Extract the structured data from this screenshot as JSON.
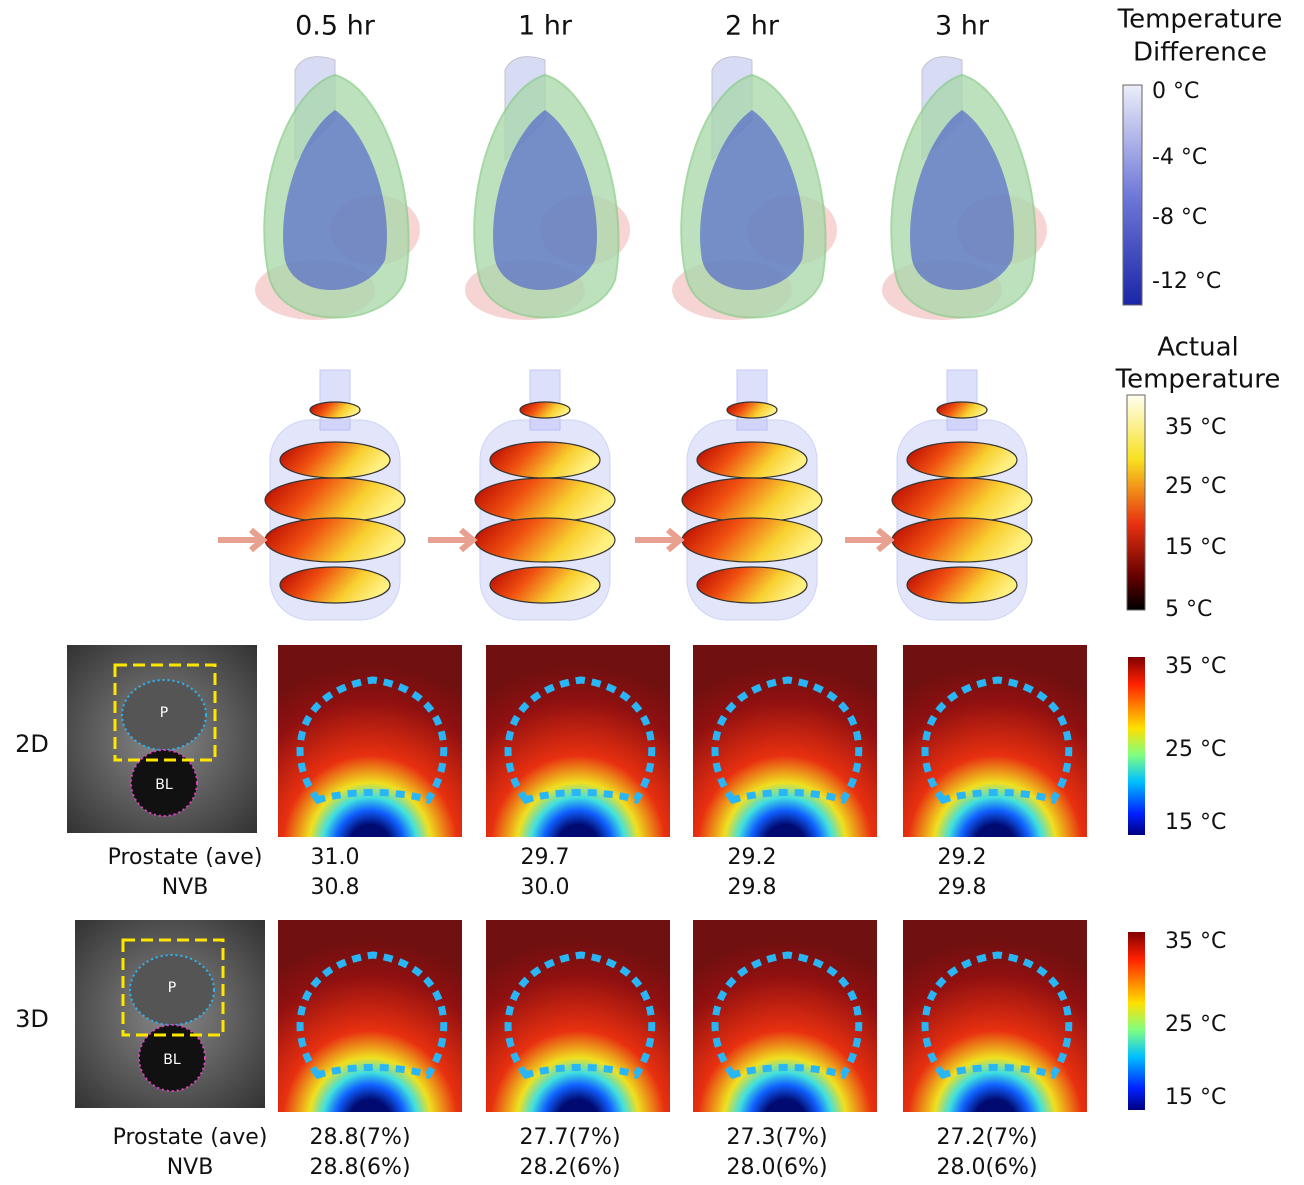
{
  "time_labels": [
    "0.5 hr",
    "1 hr",
    "2 hr",
    "3 hr"
  ],
  "temperature_difference": {
    "title_lines": [
      "Temperature",
      "Difference"
    ],
    "ticks": [
      "0 °C",
      "-4 °C",
      "-8 °C",
      "-12 °C"
    ]
  },
  "actual_temperature": {
    "title_lines": [
      "Actual",
      "Temperature"
    ],
    "ticks": [
      "35 °C",
      "25 °C",
      "15 °C",
      "5 °C"
    ]
  },
  "rows": [
    {
      "label": "2D",
      "mri_labels": [
        "P",
        "BL"
      ],
      "colorbar_ticks": [
        "35 °C",
        "25 °C",
        "15 °C"
      ],
      "metrics": [
        {
          "name": "Prostate (ave)",
          "values": [
            "31.0",
            "29.7",
            "29.2",
            "29.2"
          ]
        },
        {
          "name": "NVB",
          "values": [
            "30.8",
            "30.0",
            "29.8",
            "29.8"
          ]
        }
      ]
    },
    {
      "label": "3D",
      "mri_labels": [
        "P",
        "BL"
      ],
      "colorbar_ticks": [
        "35 °C",
        "25 °C",
        "15 °C"
      ],
      "metrics": [
        {
          "name": "Prostate (ave)",
          "values": [
            "28.8(7%)",
            "27.7(7%)",
            "27.3(7%)",
            "27.2(7%)"
          ]
        },
        {
          "name": "NVB",
          "values": [
            "28.8(6%)",
            "28.2(6%)",
            "28.0(6%)",
            "28.0(6%)"
          ]
        }
      ]
    }
  ]
}
